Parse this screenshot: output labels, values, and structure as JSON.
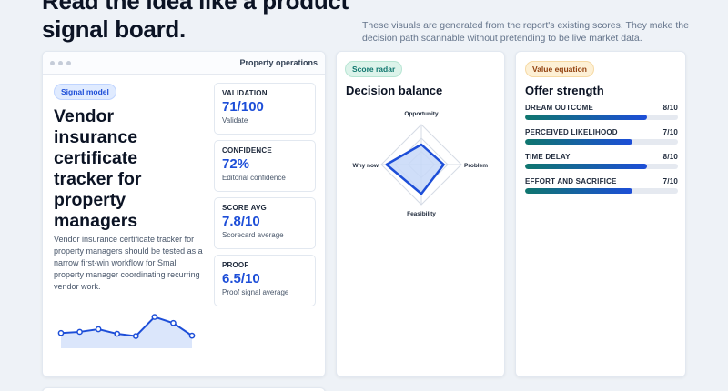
{
  "header": {
    "headline": "Read the idea like a product signal board.",
    "intro": "These visuals are generated from the report's existing scores. They make the decision path scannable without pretending to be live market data."
  },
  "main_card": {
    "window_title": "Property operations",
    "badge": "Signal model",
    "title": "Vendor insurance certificate tracker for property managers",
    "description": "Vendor insurance certificate tracker for property managers should be tested as a narrow first-win workflow for Small property manager coordinating recurring vendor work.",
    "metrics": [
      {
        "label": "VALIDATION",
        "value": "71/100",
        "sub": "Validate"
      },
      {
        "label": "CONFIDENCE",
        "value": "72%",
        "sub": "Editorial confidence"
      },
      {
        "label": "SCORE AVG",
        "value": "7.8/10",
        "sub": "Scorecard average"
      },
      {
        "label": "PROOF",
        "value": "6.5/10",
        "sub": "Proof signal average"
      }
    ],
    "sparkline": [
      4,
      4.3,
      5,
      3.8,
      3.2,
      8.2,
      6.6,
      3.3
    ]
  },
  "radar_card": {
    "badge": "Score radar",
    "title": "Decision balance",
    "axes": [
      {
        "label": "Opportunity",
        "value": 0.5
      },
      {
        "label": "Problem",
        "value": 0.56
      },
      {
        "label": "Feasibility",
        "value": 0.73
      },
      {
        "label": "Why now",
        "value": 0.87
      }
    ]
  },
  "value_card": {
    "badge": "Value equation",
    "title": "Offer strength",
    "items": [
      {
        "label": "DREAM OUTCOME",
        "score": "8/10",
        "fraction": 0.8
      },
      {
        "label": "PERCEIVED LIKELIHOOD",
        "score": "7/10",
        "fraction": 0.7
      },
      {
        "label": "TIME DELAY",
        "score": "8/10",
        "fraction": 0.8
      },
      {
        "label": "EFFORT AND SACRIFICE",
        "score": "7/10",
        "fraction": 0.7
      }
    ]
  },
  "colors": {
    "accent": "#1d4ed8",
    "teal": "#0f766e",
    "radar_fill": "#c7d8f8"
  }
}
